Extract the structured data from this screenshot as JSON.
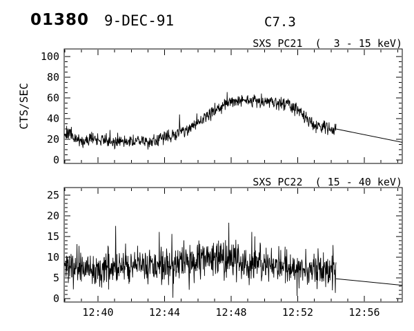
{
  "header": {
    "sequence_number": "01380",
    "date": "9-DEC-91",
    "flare_class": "C7.3"
  },
  "colors": {
    "background": "#ffffff",
    "foreground": "#000000"
  },
  "chart_data": [
    {
      "type": "line",
      "instrument": "SXS PC21",
      "energy_range": "3 - 15 keV",
      "title": "SXS PC21  (  3 - 15 keV)",
      "ylabel": "CTS/SEC",
      "ylim": [
        0,
        100
      ],
      "yticks": [
        0,
        20,
        40,
        60,
        80,
        100
      ],
      "ytick_minor_step": 5,
      "xlim": [
        "12:38",
        "12:58"
      ],
      "xticks": [
        "12:40",
        "12:44",
        "12:48",
        "12:52",
        "12:56"
      ],
      "xtick_minutes_after_12_38": [
        2,
        6,
        10,
        14,
        18
      ],
      "xtick_labels_shown": false,
      "grid": false,
      "legend": null,
      "series": {
        "name": "PC21 count rate",
        "t_minutes_after_12_38": [
          0,
          0.3,
          0.7,
          1,
          1.5,
          2,
          2.5,
          3,
          3.5,
          4,
          4.5,
          5,
          5.5,
          6,
          6.5,
          7,
          7.5,
          8,
          8.5,
          9,
          9.5,
          10,
          10.5,
          11,
          11.5,
          12,
          12.5,
          13,
          13.5,
          14,
          14.5,
          15,
          15.5,
          16,
          16.3
        ],
        "mean_cts_per_sec": [
          24,
          27,
          20,
          16,
          21,
          20,
          19,
          17.5,
          18,
          18,
          19,
          18,
          19,
          21,
          24,
          27,
          31,
          36,
          42,
          48,
          52,
          56,
          58,
          57,
          57,
          57,
          56,
          55,
          53,
          48,
          40,
          34,
          32,
          31,
          30
        ],
        "noise_sigma": 5.5,
        "data_end_minutes": 16.3
      },
      "trailing_line": {
        "t_minutes_after_12_38": [
          16.3,
          20.3
        ],
        "cts_per_sec": [
          30,
          17
        ]
      }
    },
    {
      "type": "line",
      "instrument": "SXS PC22",
      "energy_range": "15 - 40 keV",
      "title": "SXS PC22  ( 15 - 40 keV)",
      "ylabel": "",
      "ylim": [
        0,
        25
      ],
      "yticks": [
        0,
        5,
        10,
        15,
        20,
        25
      ],
      "ytick_minor_step": 1,
      "xlim": [
        "12:38",
        "12:58"
      ],
      "xticks": [
        "12:40",
        "12:44",
        "12:48",
        "12:52",
        "12:56"
      ],
      "xtick_minutes_after_12_38": [
        2,
        6,
        10,
        14,
        18
      ],
      "xtick_labels_shown": true,
      "grid": false,
      "legend": null,
      "series": {
        "name": "PC22 count rate",
        "t_minutes_after_12_38": [
          0,
          1,
          2,
          3,
          4,
          5,
          6,
          7,
          8,
          8.7,
          9,
          10,
          11,
          12,
          13,
          14,
          15,
          16,
          16.3
        ],
        "mean_cts_per_sec": [
          8,
          8,
          7.5,
          7.5,
          8,
          8,
          8,
          8.5,
          9,
          10.5,
          9.5,
          9.5,
          8.5,
          8,
          8,
          7.5,
          7,
          7,
          7
        ],
        "noise_sigma": 3.8,
        "data_end_minutes": 16.3
      },
      "trailing_line": {
        "t_minutes_after_12_38": [
          16.3,
          20.3
        ],
        "cts_per_sec": [
          4.8,
          3.2
        ]
      }
    }
  ]
}
